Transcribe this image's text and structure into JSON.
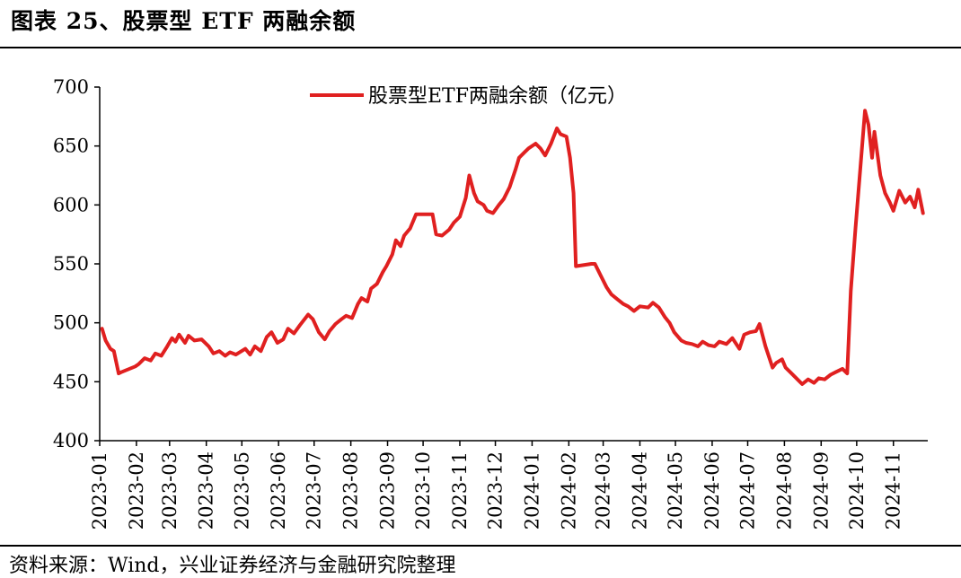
{
  "figure": {
    "title": "图表 25、股票型 ETF 两融余额",
    "source": "资料来源：Wind，兴业证券经济与金融研究院整理"
  },
  "colors": {
    "series": "#e02020",
    "axis": "#000000"
  },
  "chart_data": {
    "type": "line",
    "title": "图表 25、股票型 ETF 两融余额",
    "xlabel": "",
    "ylabel": "",
    "legend_position": "top-center",
    "grid": false,
    "ylim": [
      400,
      700
    ],
    "yticks": [
      400,
      450,
      500,
      550,
      600,
      650,
      700
    ],
    "xlim": [
      "2023-01-01",
      "2024-11-30"
    ],
    "xtick_labels": [
      "2023-01",
      "2023-02",
      "2023-03",
      "2023-04",
      "2023-05",
      "2023-06",
      "2023-07",
      "2023-08",
      "2023-09",
      "2023-10",
      "2023-11",
      "2023-12",
      "2024-01",
      "2024-02",
      "2024-03",
      "2024-04",
      "2024-05",
      "2024-06",
      "2024-07",
      "2024-08",
      "2024-09",
      "2024-10",
      "2024-11"
    ],
    "series": [
      {
        "name": "股票型ETF两融余额（亿元）",
        "unit": "亿元",
        "points": [
          [
            "2023-01-03",
            495
          ],
          [
            "2023-01-06",
            485
          ],
          [
            "2023-01-10",
            478
          ],
          [
            "2023-01-13",
            476
          ],
          [
            "2023-01-17",
            457
          ],
          [
            "2023-01-19",
            458
          ],
          [
            "2023-01-31",
            463
          ],
          [
            "2023-02-03",
            465
          ],
          [
            "2023-02-08",
            470
          ],
          [
            "2023-02-13",
            468
          ],
          [
            "2023-02-17",
            474
          ],
          [
            "2023-02-22",
            472
          ],
          [
            "2023-02-27",
            480
          ],
          [
            "2023-03-03",
            487
          ],
          [
            "2023-03-06",
            484
          ],
          [
            "2023-03-09",
            490
          ],
          [
            "2023-03-14",
            483
          ],
          [
            "2023-03-17",
            489
          ],
          [
            "2023-03-22",
            485
          ],
          [
            "2023-03-28",
            486
          ],
          [
            "2023-04-03",
            480
          ],
          [
            "2023-04-07",
            474
          ],
          [
            "2023-04-12",
            476
          ],
          [
            "2023-04-17",
            472
          ],
          [
            "2023-04-21",
            475
          ],
          [
            "2023-04-26",
            473
          ],
          [
            "2023-05-04",
            478
          ],
          [
            "2023-05-08",
            473
          ],
          [
            "2023-05-12",
            480
          ],
          [
            "2023-05-17",
            476
          ],
          [
            "2023-05-22",
            488
          ],
          [
            "2023-05-26",
            492
          ],
          [
            "2023-05-31",
            483
          ],
          [
            "2023-06-05",
            486
          ],
          [
            "2023-06-09",
            495
          ],
          [
            "2023-06-14",
            491
          ],
          [
            "2023-06-19",
            498
          ],
          [
            "2023-06-26",
            507
          ],
          [
            "2023-06-30",
            503
          ],
          [
            "2023-07-05",
            492
          ],
          [
            "2023-07-10",
            486
          ],
          [
            "2023-07-14",
            493
          ],
          [
            "2023-07-19",
            499
          ],
          [
            "2023-07-24",
            503
          ],
          [
            "2023-07-28",
            506
          ],
          [
            "2023-08-02",
            504
          ],
          [
            "2023-08-07",
            516
          ],
          [
            "2023-08-10",
            521
          ],
          [
            "2023-08-15",
            518
          ],
          [
            "2023-08-18",
            529
          ],
          [
            "2023-08-23",
            533
          ],
          [
            "2023-08-28",
            543
          ],
          [
            "2023-08-31",
            548
          ],
          [
            "2023-09-05",
            558
          ],
          [
            "2023-09-08",
            570
          ],
          [
            "2023-09-12",
            565
          ],
          [
            "2023-09-15",
            574
          ],
          [
            "2023-09-20",
            580
          ],
          [
            "2023-09-25",
            592
          ],
          [
            "2023-10-09",
            592
          ],
          [
            "2023-10-12",
            575
          ],
          [
            "2023-10-17",
            574
          ],
          [
            "2023-10-23",
            579
          ],
          [
            "2023-10-27",
            585
          ],
          [
            "2023-11-01",
            590
          ],
          [
            "2023-11-06",
            606
          ],
          [
            "2023-11-09",
            625
          ],
          [
            "2023-11-13",
            610
          ],
          [
            "2023-11-16",
            603
          ],
          [
            "2023-11-21",
            600
          ],
          [
            "2023-11-24",
            595
          ],
          [
            "2023-11-29",
            593
          ],
          [
            "2023-12-04",
            600
          ],
          [
            "2023-12-08",
            605
          ],
          [
            "2023-12-13",
            615
          ],
          [
            "2023-12-18",
            630
          ],
          [
            "2023-12-21",
            640
          ],
          [
            "2023-12-26",
            645
          ],
          [
            "2023-12-29",
            648
          ],
          [
            "2024-01-04",
            652
          ],
          [
            "2024-01-08",
            648
          ],
          [
            "2024-01-12",
            642
          ],
          [
            "2024-01-17",
            652
          ],
          [
            "2024-01-22",
            665
          ],
          [
            "2024-01-25",
            660
          ],
          [
            "2024-01-30",
            658
          ],
          [
            "2024-02-02",
            640
          ],
          [
            "2024-02-05",
            610
          ],
          [
            "2024-02-07",
            548
          ],
          [
            "2024-02-20",
            550
          ],
          [
            "2024-02-23",
            550
          ],
          [
            "2024-02-28",
            540
          ],
          [
            "2024-03-04",
            530
          ],
          [
            "2024-03-08",
            524
          ],
          [
            "2024-03-13",
            520
          ],
          [
            "2024-03-18",
            516
          ],
          [
            "2024-03-22",
            514
          ],
          [
            "2024-03-27",
            510
          ],
          [
            "2024-04-01",
            514
          ],
          [
            "2024-04-08",
            513
          ],
          [
            "2024-04-12",
            517
          ],
          [
            "2024-04-17",
            513
          ],
          [
            "2024-04-22",
            505
          ],
          [
            "2024-04-26",
            500
          ],
          [
            "2024-04-30",
            492
          ],
          [
            "2024-05-06",
            485
          ],
          [
            "2024-05-10",
            483
          ],
          [
            "2024-05-15",
            482
          ],
          [
            "2024-05-20",
            480
          ],
          [
            "2024-05-24",
            484
          ],
          [
            "2024-05-29",
            481
          ],
          [
            "2024-06-03",
            480
          ],
          [
            "2024-06-07",
            484
          ],
          [
            "2024-06-13",
            482
          ],
          [
            "2024-06-18",
            487
          ],
          [
            "2024-06-24",
            478
          ],
          [
            "2024-06-28",
            490
          ],
          [
            "2024-07-03",
            492
          ],
          [
            "2024-07-08",
            493
          ],
          [
            "2024-07-11",
            499
          ],
          [
            "2024-07-16",
            480
          ],
          [
            "2024-07-22",
            462
          ],
          [
            "2024-07-25",
            466
          ],
          [
            "2024-07-30",
            469
          ],
          [
            "2024-08-02",
            462
          ],
          [
            "2024-08-07",
            457
          ],
          [
            "2024-08-12",
            452
          ],
          [
            "2024-08-16",
            448
          ],
          [
            "2024-08-21",
            452
          ],
          [
            "2024-08-26",
            449
          ],
          [
            "2024-08-30",
            453
          ],
          [
            "2024-09-04",
            452
          ],
          [
            "2024-09-09",
            456
          ],
          [
            "2024-09-13",
            458
          ],
          [
            "2024-09-19",
            461
          ],
          [
            "2024-09-23",
            457
          ],
          [
            "2024-09-26",
            527
          ],
          [
            "2024-09-30",
            580
          ],
          [
            "2024-10-08",
            680
          ],
          [
            "2024-10-11",
            668
          ],
          [
            "2024-10-14",
            640
          ],
          [
            "2024-10-16",
            662
          ],
          [
            "2024-10-21",
            625
          ],
          [
            "2024-10-25",
            610
          ],
          [
            "2024-10-29",
            602
          ],
          [
            "2024-11-01",
            595
          ],
          [
            "2024-11-06",
            612
          ],
          [
            "2024-11-11",
            602
          ],
          [
            "2024-11-15",
            607
          ],
          [
            "2024-11-19",
            598
          ],
          [
            "2024-11-22",
            613
          ],
          [
            "2024-11-26",
            593
          ]
        ]
      }
    ]
  }
}
